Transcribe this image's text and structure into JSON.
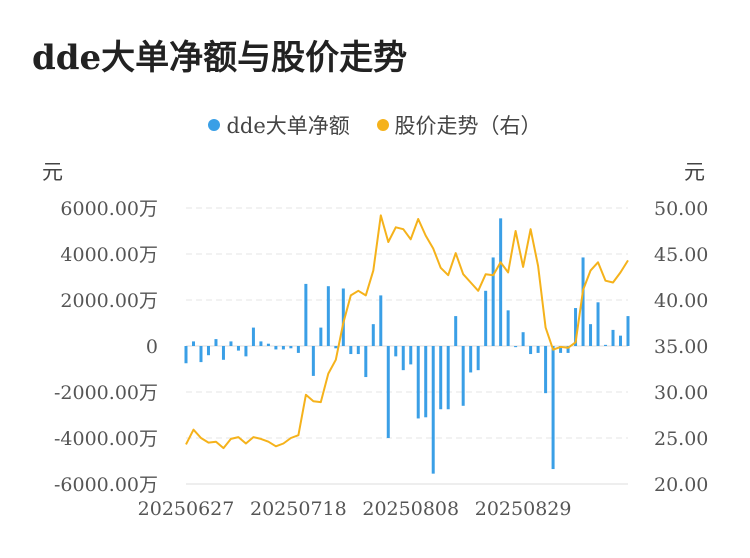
{
  "title": "dde大单净额与股价走势",
  "legend": [
    {
      "label": "dde大单净额",
      "color": "#3a9fe6"
    },
    {
      "label": "股价走势（右）",
      "color": "#f5b21b"
    }
  ],
  "unit_left": "元",
  "unit_right": "元",
  "chart_data": {
    "type": "bar",
    "ylim_left": [
      -6000,
      6000
    ],
    "ylim_right": [
      20,
      50
    ],
    "yticks_left": [
      "6000.00万",
      "4000.00万",
      "2000.00万",
      "0",
      "-2000.00万",
      "-4000.00万",
      "-6000.00万"
    ],
    "yticks_right": [
      "50.00",
      "45.00",
      "40.00",
      "35.00",
      "30.00",
      "25.00",
      "20.00"
    ],
    "xtick_labels": [
      "20250627",
      "20250718",
      "20250808",
      "20250829"
    ],
    "xtick_indices": [
      0,
      15,
      30,
      45
    ],
    "grid": true,
    "series": [
      {
        "name": "dde大单净额",
        "values": [
          -750,
          200,
          -700,
          -400,
          300,
          -600,
          200,
          -200,
          -450,
          800,
          200,
          100,
          -150,
          -150,
          -100,
          -300,
          2700,
          -1300,
          800,
          2600,
          -100,
          2500,
          -350,
          -350,
          -1350,
          950,
          2200,
          -4000,
          -450,
          -1050,
          -800,
          -3150,
          -3100,
          -5550,
          -2750,
          -2750,
          1300,
          -2600,
          -1150,
          -1050,
          2400,
          3850,
          5550,
          1550,
          -50,
          600,
          -350,
          -300,
          -2050,
          -5350,
          -300,
          -300,
          1650,
          3850,
          950,
          1900,
          50,
          700,
          450,
          1300
        ]
      },
      {
        "name": "股价走势（右）",
        "values": [
          24.3,
          25.9,
          25.0,
          24.5,
          24.6,
          23.9,
          24.9,
          25.1,
          24.4,
          25.1,
          24.9,
          24.6,
          24.1,
          24.4,
          25.0,
          25.3,
          29.7,
          29.0,
          28.9,
          32.0,
          33.5,
          37.5,
          40.5,
          41.0,
          40.5,
          43.2,
          49.2,
          46.3,
          47.9,
          47.7,
          46.6,
          48.8,
          47.0,
          45.6,
          43.5,
          42.7,
          45.1,
          42.8,
          41.9,
          41.0,
          42.8,
          42.7,
          44.1,
          43.0,
          47.5,
          43.6,
          47.7,
          43.7,
          37.0,
          34.6,
          34.9,
          34.8,
          35.4,
          41.1,
          43.2,
          44.1,
          42.1,
          41.9,
          43.0,
          44.3
        ]
      }
    ]
  }
}
